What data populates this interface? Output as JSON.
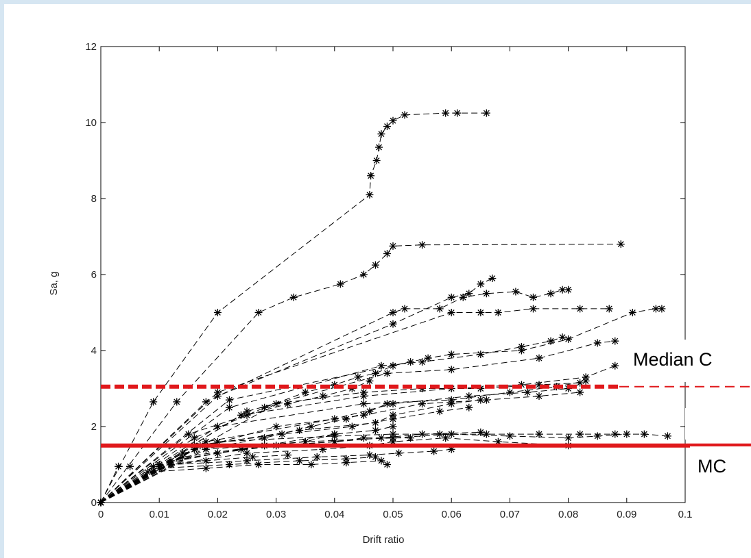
{
  "chart_data": {
    "type": "line",
    "title": "",
    "xlabel": "Drift ratio",
    "ylabel": "Sa, g",
    "xlim": [
      0,
      0.1
    ],
    "ylim": [
      0,
      12
    ],
    "x_ticks": [
      "0",
      "0.01",
      "0.02",
      "0.03",
      "0.04",
      "0.05",
      "0.06",
      "0.07",
      "0.08",
      "0.09",
      "0.1"
    ],
    "y_ticks": [
      "0",
      "2",
      "4",
      "6",
      "8",
      "10",
      "12"
    ],
    "grid": false,
    "marker": "asterisk",
    "line_style": "dashed",
    "line_color": "#000000",
    "reference_lines": [
      {
        "label": "Median Collapse",
        "visible_text": "Median C",
        "y": 3.05,
        "style": "dashed",
        "color": "#e0191c"
      },
      {
        "label": "MCE",
        "visible_text": "MC",
        "y": 1.5,
        "style": "solid",
        "color": "#e0191c"
      }
    ],
    "series": [
      {
        "x": [
          0,
          0.009,
          0.02,
          0.046,
          0.0462,
          0.0472,
          0.0476,
          0.048,
          0.049,
          0.05,
          0.052,
          0.059,
          0.061,
          0.066
        ],
        "y": [
          0,
          2.65,
          5.0,
          8.1,
          8.6,
          9.0,
          9.35,
          9.7,
          9.9,
          10.05,
          10.2,
          10.25,
          10.25,
          10.25
        ]
      },
      {
        "x": [
          0,
          0.013,
          0.027,
          0.033,
          0.041,
          0.045,
          0.047,
          0.049,
          0.05,
          0.055,
          0.089
        ],
        "y": [
          0,
          2.65,
          5.0,
          5.4,
          5.75,
          6.0,
          6.25,
          6.55,
          6.75,
          6.78,
          6.8
        ]
      },
      {
        "x": [
          0,
          0.018,
          0.05,
          0.052,
          0.058,
          0.062,
          0.066,
          0.071,
          0.074,
          0.077,
          0.079,
          0.08
        ],
        "y": [
          0,
          2.65,
          5.0,
          5.1,
          5.1,
          5.4,
          5.5,
          5.55,
          5.4,
          5.5,
          5.6,
          5.6
        ]
      },
      {
        "x": [
          0,
          0.02,
          0.06,
          0.065,
          0.068,
          0.074,
          0.082,
          0.087
        ],
        "y": [
          0,
          2.9,
          5.0,
          5.0,
          5.0,
          5.1,
          5.1,
          5.1
        ]
      },
      {
        "x": [
          0,
          0.02,
          0.05,
          0.06,
          0.063,
          0.065,
          0.067
        ],
        "y": [
          0,
          2.8,
          4.7,
          5.4,
          5.5,
          5.75,
          5.9
        ]
      },
      {
        "x": [
          0,
          0.022,
          0.056,
          0.06,
          0.072,
          0.08,
          0.091,
          0.095,
          0.096
        ],
        "y": [
          0,
          2.7,
          3.8,
          3.9,
          4.0,
          4.3,
          5.0,
          5.1,
          5.1
        ]
      },
      {
        "x": [
          0,
          0.022,
          0.048,
          0.055,
          0.065,
          0.072,
          0.077,
          0.079
        ],
        "y": [
          0,
          2.5,
          3.6,
          3.7,
          3.9,
          4.1,
          4.25,
          4.35
        ]
      },
      {
        "x": [
          0,
          0.025,
          0.049,
          0.06,
          0.075,
          0.085,
          0.088
        ],
        "y": [
          0,
          2.4,
          3.4,
          3.5,
          3.8,
          4.2,
          4.25
        ]
      },
      {
        "x": [
          0,
          0.024,
          0.045,
          0.06,
          0.072,
          0.083,
          0.088
        ],
        "y": [
          0,
          2.3,
          2.8,
          3.0,
          3.1,
          3.3,
          3.6
        ]
      },
      {
        "x": [
          0,
          0.02,
          0.045,
          0.06,
          0.07,
          0.078,
          0.083
        ],
        "y": [
          0,
          2.0,
          2.6,
          2.7,
          2.9,
          3.05,
          3.2
        ]
      },
      {
        "x": [
          0,
          0.03,
          0.045,
          0.055,
          0.065,
          0.075,
          0.082
        ],
        "y": [
          0,
          2.6,
          2.9,
          3.0,
          3.0,
          3.1,
          3.15
        ]
      },
      {
        "x": [
          0,
          0.018,
          0.04,
          0.05,
          0.063,
          0.073,
          0.08
        ],
        "y": [
          0,
          1.6,
          2.2,
          2.6,
          2.8,
          2.9,
          3.0
        ]
      },
      {
        "x": [
          0,
          0.016,
          0.03,
          0.045,
          0.055,
          0.066,
          0.075,
          0.082
        ],
        "y": [
          0,
          1.4,
          2.0,
          2.3,
          2.6,
          2.7,
          2.8,
          2.9
        ]
      },
      {
        "x": [
          0,
          0.017,
          0.034,
          0.047,
          0.05,
          0.06,
          0.065
        ],
        "y": [
          0,
          1.5,
          1.9,
          2.1,
          2.3,
          2.6,
          2.7
        ]
      },
      {
        "x": [
          0,
          0.016,
          0.031,
          0.043,
          0.05,
          0.058,
          0.063
        ],
        "y": [
          0,
          1.5,
          1.8,
          2.0,
          2.2,
          2.4,
          2.5
        ]
      },
      {
        "x": [
          0,
          0.02,
          0.04,
          0.05,
          0.058,
          0.066,
          0.075,
          0.082,
          0.088,
          0.093,
          0.097
        ],
        "y": [
          0,
          1.6,
          1.75,
          1.8,
          1.8,
          1.8,
          1.8,
          1.8,
          1.8,
          1.8,
          1.75
        ]
      },
      {
        "x": [
          0,
          0.018,
          0.035,
          0.05,
          0.06,
          0.07,
          0.08,
          0.085,
          0.09
        ],
        "y": [
          0,
          1.4,
          1.6,
          1.7,
          1.8,
          1.75,
          1.7,
          1.75,
          1.8
        ]
      },
      {
        "x": [
          0,
          0.01,
          0.02,
          0.03,
          0.04,
          0.048,
          0.055,
          0.065
        ],
        "y": [
          0,
          1.0,
          1.3,
          1.5,
          1.6,
          1.7,
          1.8,
          1.85
        ]
      },
      {
        "x": [
          0,
          0.012,
          0.025,
          0.038,
          0.046,
          0.05,
          0.059,
          0.068,
          0.08
        ],
        "y": [
          0,
          1.0,
          1.3,
          1.4,
          1.5,
          1.6,
          1.7,
          1.6,
          1.5
        ]
      },
      {
        "x": [
          0,
          0.012,
          0.025,
          0.037,
          0.046,
          0.051,
          0.057,
          0.06
        ],
        "y": [
          0,
          1.0,
          1.1,
          1.2,
          1.25,
          1.3,
          1.35,
          1.4
        ]
      },
      {
        "x": [
          0,
          0.01,
          0.022,
          0.034,
          0.042,
          0.047,
          0.049
        ],
        "y": [
          0,
          0.9,
          1.0,
          1.1,
          1.15,
          1.2,
          1.0
        ]
      },
      {
        "x": [
          0,
          0.008,
          0.018,
          0.027,
          0.036,
          0.042,
          0.048
        ],
        "y": [
          0,
          0.8,
          0.9,
          1.0,
          1.0,
          1.05,
          1.1
        ]
      },
      {
        "x": [
          0,
          0.003,
          0.005
        ],
        "y": [
          0,
          0.95,
          0.95
        ]
      },
      {
        "x": [
          0,
          0.012,
          0.024,
          0.03,
          0.04,
          0.045,
          0.05,
          0.053
        ],
        "y": [
          0,
          1.1,
          1.4,
          1.5,
          1.6,
          1.7,
          1.7,
          1.7
        ]
      },
      {
        "x": [
          0,
          0.014,
          0.028,
          0.04,
          0.047,
          0.05
        ],
        "y": [
          0,
          1.2,
          1.5,
          1.8,
          1.9,
          2.0
        ]
      },
      {
        "x": [
          0,
          0.014,
          0.028,
          0.036,
          0.042,
          0.046,
          0.049
        ],
        "y": [
          0,
          1.3,
          1.7,
          2.0,
          2.2,
          2.4,
          2.6
        ]
      },
      {
        "x": [
          0,
          0.016,
          0.028,
          0.035,
          0.04,
          0.044,
          0.047,
          0.05,
          0.053
        ],
        "y": [
          0,
          1.7,
          2.5,
          2.9,
          3.1,
          3.3,
          3.4,
          3.6,
          3.7
        ]
      },
      {
        "x": [
          0,
          0.015,
          0.025,
          0.032,
          0.038,
          0.043,
          0.046
        ],
        "y": [
          0,
          1.8,
          2.3,
          2.6,
          2.8,
          3.0,
          3.2
        ]
      },
      {
        "x": [
          0,
          0.012,
          0.02,
          0.028,
          0.035,
          0.04
        ],
        "y": [
          0,
          1.1,
          1.3,
          1.5,
          1.6,
          1.8
        ]
      },
      {
        "x": [
          0,
          0.009,
          0.018,
          0.026,
          0.032
        ],
        "y": [
          0,
          0.95,
          1.1,
          1.2,
          1.25
        ]
      }
    ]
  }
}
